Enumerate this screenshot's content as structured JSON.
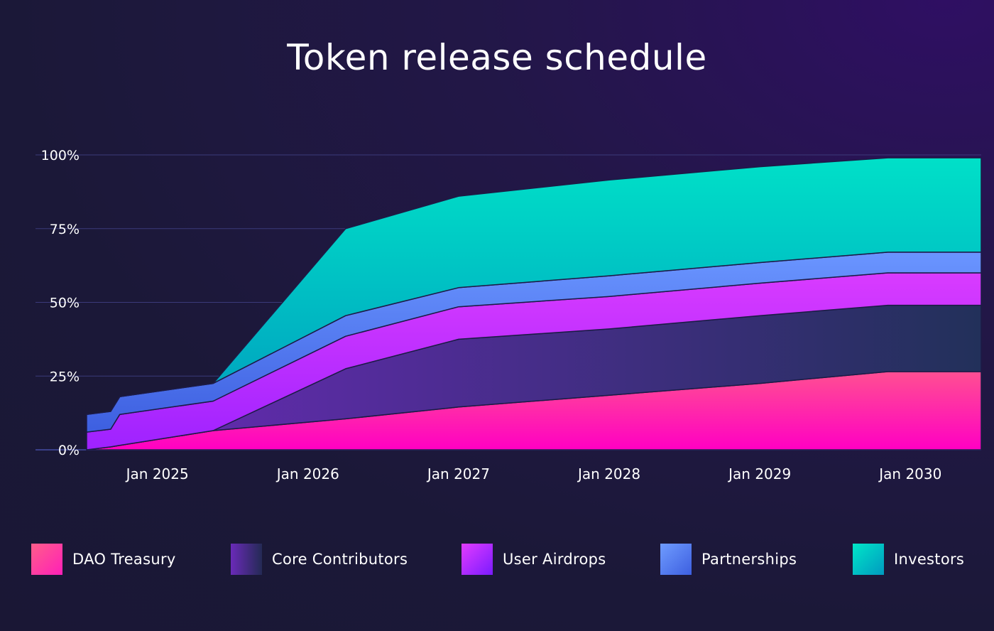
{
  "chart_data": {
    "type": "area",
    "stacked": true,
    "title": "Token release schedule",
    "xlabel": "",
    "ylabel": "",
    "x_ticks": [
      "Jan 2025",
      "Jan 2026",
      "Jan 2027",
      "Jan 2028",
      "Jan 2029",
      "Jan 2030"
    ],
    "x_tick_years": [
      2025,
      2026,
      2027,
      2028,
      2029,
      2030
    ],
    "y_ticks": [
      "0%",
      "25%",
      "50%",
      "75%",
      "100%"
    ],
    "y_tick_values": [
      0,
      25,
      50,
      75,
      100
    ],
    "xlim": [
      2024.53,
      2030.47
    ],
    "ylim": [
      0,
      100
    ],
    "grid": true,
    "legend_position": "bottom",
    "x": [
      2024.53,
      2024.69,
      2024.75,
      2025.37,
      2026.25,
      2027.0,
      2028.0,
      2029.0,
      2029.85,
      2030.47
    ],
    "series": [
      {
        "name": "DAO Treasury",
        "values": [
          0,
          1,
          1.5,
          6.5,
          10.5,
          14.5,
          18.5,
          22.5,
          26.5,
          26.5
        ],
        "color_top": "#ff4f92",
        "color_bottom": "#ff00c3"
      },
      {
        "name": "Core Contributors",
        "values": [
          0,
          0,
          0,
          0,
          17,
          23,
          22.5,
          23,
          22.5,
          22.5
        ],
        "color_top": "#6a2ab8",
        "color_bottom": "#22305a"
      },
      {
        "name": "User Airdrops",
        "values": [
          6,
          6,
          10.5,
          10,
          11,
          11,
          11,
          11,
          11,
          11
        ],
        "color_top": "#d93bff",
        "color_bottom": "#9e22ff"
      },
      {
        "name": "Partnerships",
        "values": [
          6,
          6,
          6,
          6,
          7,
          6.5,
          7,
          7,
          7,
          7
        ],
        "color_top": "#6a95ff",
        "color_bottom": "#3d5fe0"
      },
      {
        "name": "Investors",
        "values": [
          0,
          0,
          0,
          0,
          29.5,
          31,
          32.5,
          32.5,
          32,
          32
        ],
        "color_top": "#00e0c8",
        "color_bottom": "#00a0bf"
      }
    ]
  }
}
